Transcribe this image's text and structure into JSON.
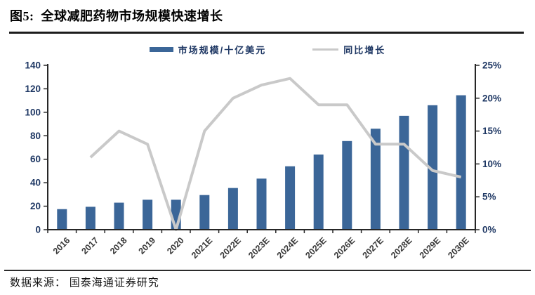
{
  "figure": {
    "title": "图5:  全球减肥药物市场规模快速增长",
    "source": "数据来源： 国泰海通证券研究"
  },
  "legend": {
    "bar_label": "市场规模/十亿美元",
    "line_label": "同比增长"
  },
  "colors": {
    "bar": "#3B6698",
    "line": "#C9C9C9",
    "y_axis_label": "#1F3864",
    "x_axis_label": "#3A3A3A",
    "axis_line": "#262626"
  },
  "chart_data": {
    "type": "bar+line",
    "title": "全球减肥药物市场规模快速增长",
    "categories": [
      "2016",
      "2017",
      "2018",
      "2019",
      "2020",
      "2021E",
      "2022E",
      "2023E",
      "2024E",
      "2025E",
      "2026E",
      "2027E",
      "2028E",
      "2029E",
      "2030E"
    ],
    "series": [
      {
        "name": "市场规模/十亿美元",
        "type": "bar",
        "axis": "left",
        "values": [
          17.5,
          19.5,
          23,
          25.5,
          25.5,
          29.5,
          35.5,
          43.5,
          54,
          64,
          75.5,
          86,
          97,
          106,
          114.5
        ]
      },
      {
        "name": "同比增长",
        "type": "line",
        "axis": "right",
        "values": [
          null,
          11,
          15,
          13,
          0,
          15,
          20,
          22,
          23,
          19,
          19,
          13,
          13,
          9,
          8
        ]
      }
    ],
    "left_axis": {
      "min": 0,
      "max": 140,
      "step": 20,
      "tick_labels": [
        "0",
        "20",
        "40",
        "60",
        "80",
        "100",
        "120",
        "140"
      ]
    },
    "right_axis": {
      "min": 0,
      "max": 25,
      "step": 5,
      "unit": "%",
      "tick_labels": [
        "0%",
        "5%",
        "10%",
        "15%",
        "20%",
        "25%"
      ]
    },
    "grid": false,
    "legend_position": "top",
    "x_label_rotation": -45
  }
}
